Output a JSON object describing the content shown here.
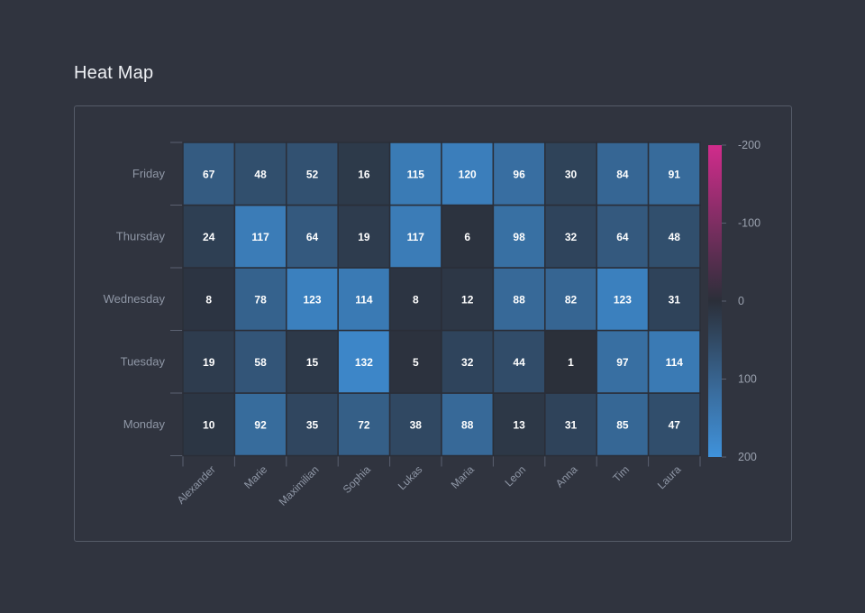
{
  "page": {
    "title": "Heat Map"
  },
  "colors": {
    "background": "#30343f",
    "low": "#2b2f39",
    "high": "#3f92db",
    "negative": "#d12c8c",
    "cell_border": "#2a2e38",
    "axis": "#5a6070",
    "text_muted": "#8f97a6"
  },
  "chart_data": {
    "type": "heatmap",
    "title": "Heat Map",
    "x_categories": [
      "Alexander",
      "Marie",
      "Maximilian",
      "Sophia",
      "Lukas",
      "Maria",
      "Leon",
      "Anna",
      "Tim",
      "Laura"
    ],
    "y_categories": [
      "Monday",
      "Tuesday",
      "Wednesday",
      "Thursday",
      "Friday"
    ],
    "values": [
      [
        10,
        92,
        35,
        72,
        38,
        88,
        13,
        31,
        85,
        47
      ],
      [
        19,
        58,
        15,
        132,
        5,
        32,
        44,
        1,
        97,
        114
      ],
      [
        8,
        78,
        123,
        114,
        8,
        12,
        88,
        82,
        123,
        31
      ],
      [
        24,
        117,
        64,
        19,
        117,
        6,
        98,
        32,
        64,
        48
      ],
      [
        67,
        48,
        52,
        16,
        115,
        120,
        96,
        30,
        84,
        91
      ]
    ],
    "color_scale": {
      "min": -200,
      "max": 200,
      "ticks": [
        -200,
        -100,
        0,
        100,
        200
      ]
    },
    "legend": "right"
  }
}
